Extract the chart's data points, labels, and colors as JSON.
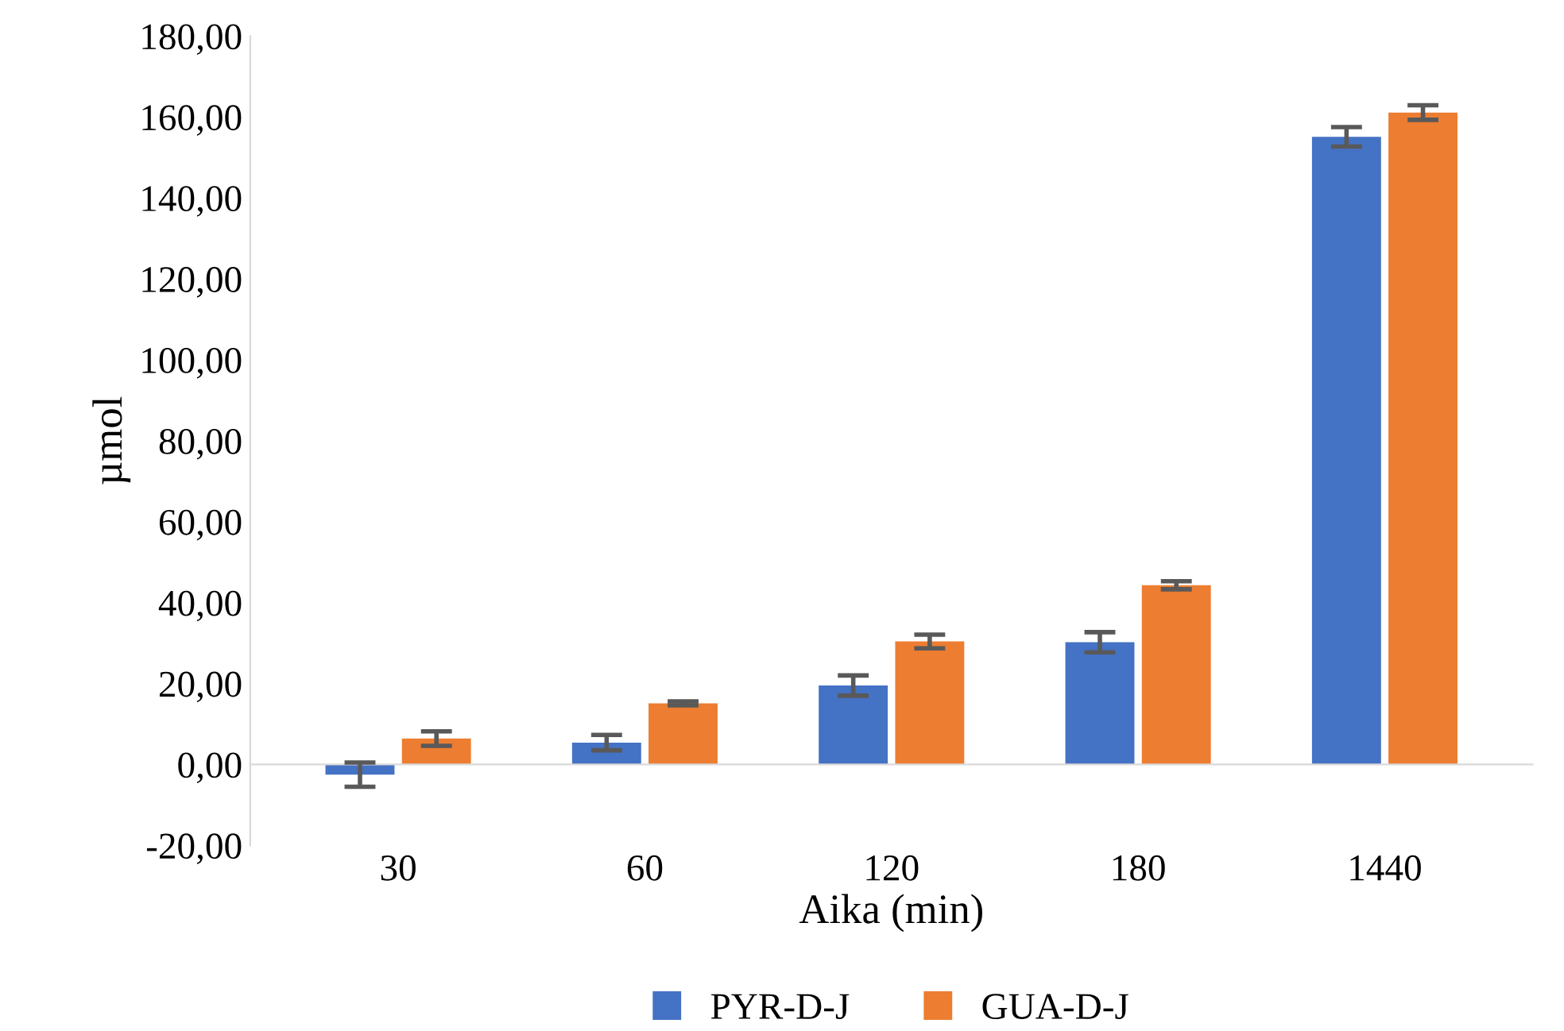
{
  "chart_data": {
    "type": "bar",
    "xlabel": "Aika (min)",
    "ylabel": "µmol",
    "categories": [
      "30",
      "60",
      "120",
      "180",
      "1440"
    ],
    "series": [
      {
        "name": "PYR-D-J",
        "color": "#4472c4",
        "values": [
          -2.5,
          5.4,
          19.5,
          30.2,
          155.1
        ],
        "errors": [
          3.0,
          1.9,
          2.5,
          2.5,
          2.4
        ]
      },
      {
        "name": "GUA-D-J",
        "color": "#ed7d31",
        "values": [
          6.4,
          15.1,
          30.4,
          44.3,
          161.1
        ],
        "errors": [
          1.8,
          0.5,
          1.7,
          1.0,
          1.8
        ]
      }
    ],
    "ylim": [
      -20,
      180
    ],
    "yticks": [
      {
        "value": -20,
        "label": "-20,00"
      },
      {
        "value": 0,
        "label": "0,00"
      },
      {
        "value": 20,
        "label": "20,00"
      },
      {
        "value": 40,
        "label": "40,00"
      },
      {
        "value": 60,
        "label": "60,00"
      },
      {
        "value": 80,
        "label": "80,00"
      },
      {
        "value": 100,
        "label": "100,00"
      },
      {
        "value": 120,
        "label": "120,00"
      },
      {
        "value": 140,
        "label": "140,00"
      },
      {
        "value": 160,
        "label": "160,00"
      },
      {
        "value": 180,
        "label": "180,00"
      }
    ],
    "legend": "bottom"
  }
}
